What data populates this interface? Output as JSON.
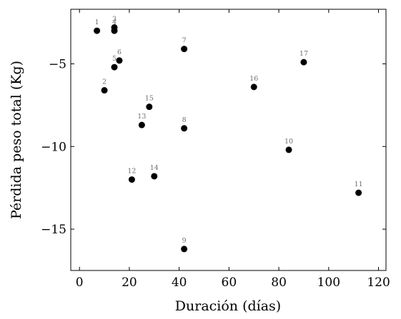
{
  "chart_data": {
    "type": "scatter",
    "xlabel": "Duración (días)",
    "ylabel": "Pérdida peso total (Kg)",
    "xlim": [
      -3.5,
      123
    ],
    "ylim": [
      -17.5,
      -1.7
    ],
    "xticks": [
      0,
      20,
      40,
      60,
      80,
      100,
      120
    ],
    "yticks": [
      -5,
      -10,
      -15
    ],
    "xtick_labels": [
      "0",
      "20",
      "40",
      "60",
      "80",
      "100",
      "120"
    ],
    "ytick_labels": [
      "−5",
      "−10",
      "−15"
    ],
    "grid": false,
    "marker_color": "#000000",
    "label_color": "#6e6e6e",
    "points": [
      {
        "label": "1",
        "x": 7,
        "y": -3.0
      },
      {
        "label": "2",
        "x": 10,
        "y": -6.6
      },
      {
        "label": "3",
        "x": 14,
        "y": -2.8
      },
      {
        "label": "4",
        "x": 14,
        "y": -3.0
      },
      {
        "label": "5",
        "x": 14,
        "y": -5.2
      },
      {
        "label": "6",
        "x": 16,
        "y": -4.8
      },
      {
        "label": "7",
        "x": 42,
        "y": -4.1
      },
      {
        "label": "8",
        "x": 42,
        "y": -8.9
      },
      {
        "label": "9",
        "x": 42,
        "y": -16.2
      },
      {
        "label": "10",
        "x": 84,
        "y": -10.2
      },
      {
        "label": "11",
        "x": 112,
        "y": -12.8
      },
      {
        "label": "12",
        "x": 21,
        "y": -12.0
      },
      {
        "label": "13",
        "x": 25,
        "y": -8.7
      },
      {
        "label": "14",
        "x": 30,
        "y": -11.8
      },
      {
        "label": "15",
        "x": 28,
        "y": -7.6
      },
      {
        "label": "16",
        "x": 70,
        "y": -6.4
      },
      {
        "label": "17",
        "x": 90,
        "y": -4.9
      }
    ]
  }
}
